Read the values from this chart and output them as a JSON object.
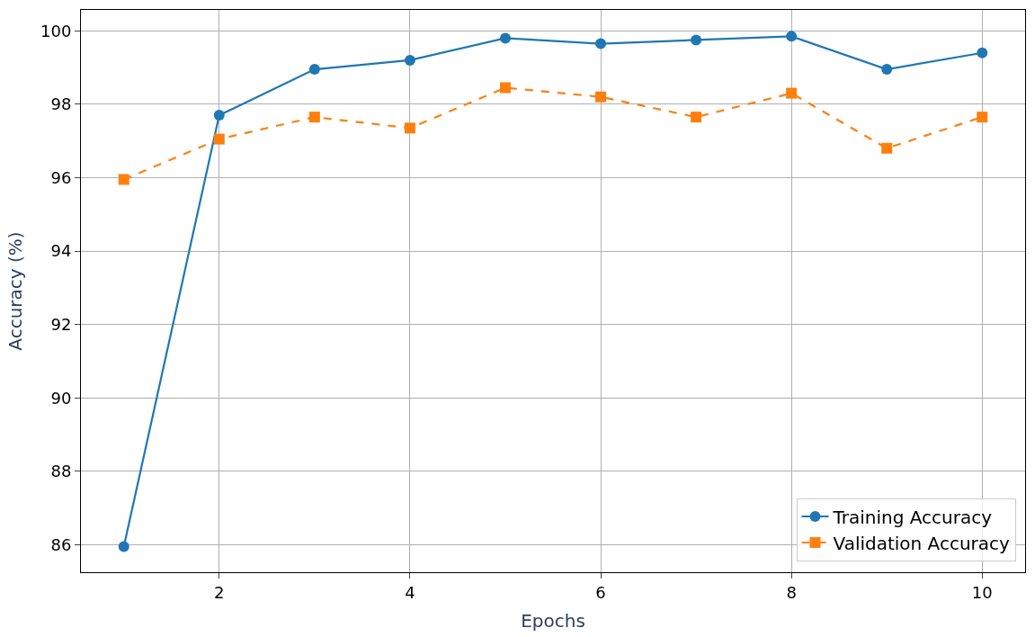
{
  "chart_data": {
    "type": "line",
    "xlabel": "Epochs",
    "ylabel": "Accuracy (%)",
    "x": [
      1,
      2,
      3,
      4,
      5,
      6,
      7,
      8,
      9,
      10
    ],
    "series": [
      {
        "name": "Training Accuracy",
        "color": "#1f77b4",
        "marker": "circle",
        "line_style": "solid",
        "values": [
          85.95,
          97.7,
          98.95,
          99.2,
          99.8,
          99.65,
          99.75,
          99.85,
          98.95,
          99.4
        ]
      },
      {
        "name": "Validation Accuracy",
        "color": "#ff7f0e",
        "marker": "square",
        "line_style": "dashed",
        "values": [
          95.95,
          97.05,
          97.65,
          97.35,
          98.45,
          98.2,
          97.65,
          98.3,
          96.8,
          97.65
        ]
      }
    ],
    "xlim": [
      0.55,
      10.45
    ],
    "xticks": [
      2,
      4,
      6,
      8,
      10
    ],
    "ylim": [
      85.25,
      100.57
    ],
    "yticks": [
      86,
      88,
      90,
      92,
      94,
      96,
      98,
      100
    ],
    "grid": true,
    "legend": "bottom right"
  }
}
